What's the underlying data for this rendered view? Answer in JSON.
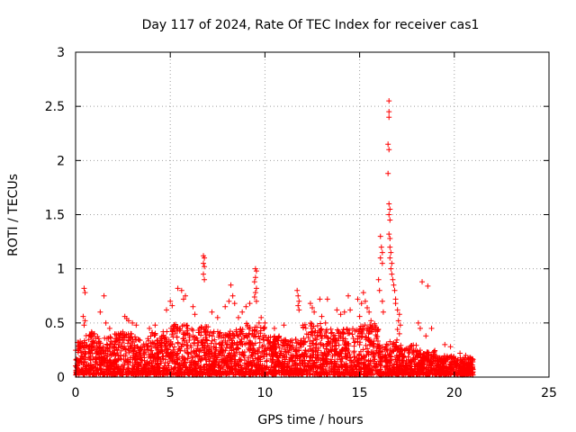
{
  "chart_data": {
    "type": "scatter",
    "title": "Day 117 of 2024, Rate Of TEC Index for receiver cas1",
    "xlabel": "GPS time / hours",
    "ylabel": "ROTI / TECUs",
    "xlim": [
      0,
      25
    ],
    "ylim": [
      0,
      3
    ],
    "xticks": [
      "0",
      "5",
      "10",
      "15",
      "20",
      "25"
    ],
    "yticks": [
      "0",
      "0.5",
      "1",
      "1.5",
      "2",
      "2.5",
      "3"
    ],
    "grid": true,
    "marker": "plus",
    "series_color": "#ff0000",
    "background_envelope": {
      "description": "dense scatter of ROTI values between 0 and the envelope top, sampled 0-21 h",
      "segments": [
        {
          "x": [
            0.0,
            0.5
          ],
          "ymax": 0.35
        },
        {
          "x": [
            0.5,
            1.0
          ],
          "ymax": 0.42
        },
        {
          "x": [
            1.0,
            2.0
          ],
          "ymax": 0.38
        },
        {
          "x": [
            2.0,
            3.0
          ],
          "ymax": 0.42
        },
        {
          "x": [
            3.0,
            4.0
          ],
          "ymax": 0.38
        },
        {
          "x": [
            4.0,
            5.0
          ],
          "ymax": 0.42
        },
        {
          "x": [
            5.0,
            6.0
          ],
          "ymax": 0.5
        },
        {
          "x": [
            6.0,
            7.0
          ],
          "ymax": 0.48
        },
        {
          "x": [
            7.0,
            8.0
          ],
          "ymax": 0.42
        },
        {
          "x": [
            8.0,
            9.0
          ],
          "ymax": 0.45
        },
        {
          "x": [
            9.0,
            10.0
          ],
          "ymax": 0.5
        },
        {
          "x": [
            10.0,
            11.0
          ],
          "ymax": 0.38
        },
        {
          "x": [
            11.0,
            12.0
          ],
          "ymax": 0.35
        },
        {
          "x": [
            12.0,
            13.0
          ],
          "ymax": 0.5
        },
        {
          "x": [
            13.0,
            14.0
          ],
          "ymax": 0.45
        },
        {
          "x": [
            14.0,
            15.0
          ],
          "ymax": 0.45
        },
        {
          "x": [
            15.0,
            16.0
          ],
          "ymax": 0.5
        },
        {
          "x": [
            16.0,
            16.4
          ],
          "ymax": 0.3
        },
        {
          "x": [
            16.4,
            17.0
          ],
          "ymax": 0.35
        },
        {
          "x": [
            17.0,
            18.0
          ],
          "ymax": 0.3
        },
        {
          "x": [
            18.0,
            19.0
          ],
          "ymax": 0.25
        },
        {
          "x": [
            19.0,
            20.0
          ],
          "ymax": 0.2
        },
        {
          "x": [
            20.0,
            21.0
          ],
          "ymax": 0.18
        }
      ]
    },
    "points": [
      {
        "x": 0.1,
        "y": 0.32
      },
      {
        "x": 0.2,
        "y": 0.28
      },
      {
        "x": 0.45,
        "y": 0.82
      },
      {
        "x": 0.5,
        "y": 0.78
      },
      {
        "x": 0.4,
        "y": 0.56
      },
      {
        "x": 0.5,
        "y": 0.52
      },
      {
        "x": 0.45,
        "y": 0.48
      },
      {
        "x": 1.3,
        "y": 0.6
      },
      {
        "x": 1.5,
        "y": 0.75
      },
      {
        "x": 1.6,
        "y": 0.5
      },
      {
        "x": 1.8,
        "y": 0.45
      },
      {
        "x": 2.6,
        "y": 0.56
      },
      {
        "x": 2.7,
        "y": 0.54
      },
      {
        "x": 2.8,
        "y": 0.52
      },
      {
        "x": 3.0,
        "y": 0.5
      },
      {
        "x": 3.2,
        "y": 0.48
      },
      {
        "x": 3.9,
        "y": 0.45
      },
      {
        "x": 4.2,
        "y": 0.48
      },
      {
        "x": 4.8,
        "y": 0.62
      },
      {
        "x": 5.0,
        "y": 0.7
      },
      {
        "x": 5.1,
        "y": 0.66
      },
      {
        "x": 5.4,
        "y": 0.82
      },
      {
        "x": 5.6,
        "y": 0.8
      },
      {
        "x": 5.7,
        "y": 0.72
      },
      {
        "x": 5.8,
        "y": 0.75
      },
      {
        "x": 6.2,
        "y": 0.65
      },
      {
        "x": 6.3,
        "y": 0.58
      },
      {
        "x": 6.75,
        "y": 1.12
      },
      {
        "x": 6.8,
        "y": 1.1
      },
      {
        "x": 6.75,
        "y": 1.05
      },
      {
        "x": 6.8,
        "y": 1.02
      },
      {
        "x": 6.75,
        "y": 0.95
      },
      {
        "x": 6.8,
        "y": 0.9
      },
      {
        "x": 7.2,
        "y": 0.6
      },
      {
        "x": 7.5,
        "y": 0.55
      },
      {
        "x": 7.9,
        "y": 0.65
      },
      {
        "x": 8.1,
        "y": 0.7
      },
      {
        "x": 8.2,
        "y": 0.85
      },
      {
        "x": 8.3,
        "y": 0.75
      },
      {
        "x": 8.4,
        "y": 0.68
      },
      {
        "x": 8.6,
        "y": 0.55
      },
      {
        "x": 8.8,
        "y": 0.6
      },
      {
        "x": 9.0,
        "y": 0.65
      },
      {
        "x": 9.2,
        "y": 0.68
      },
      {
        "x": 9.5,
        "y": 1.0
      },
      {
        "x": 9.55,
        "y": 0.98
      },
      {
        "x": 9.5,
        "y": 0.92
      },
      {
        "x": 9.45,
        "y": 0.88
      },
      {
        "x": 9.55,
        "y": 0.82
      },
      {
        "x": 9.5,
        "y": 0.78
      },
      {
        "x": 9.45,
        "y": 0.74
      },
      {
        "x": 9.55,
        "y": 0.7
      },
      {
        "x": 9.8,
        "y": 0.55
      },
      {
        "x": 10.0,
        "y": 0.5
      },
      {
        "x": 10.5,
        "y": 0.45
      },
      {
        "x": 11.0,
        "y": 0.48
      },
      {
        "x": 11.7,
        "y": 0.8
      },
      {
        "x": 11.75,
        "y": 0.75
      },
      {
        "x": 11.8,
        "y": 0.7
      },
      {
        "x": 11.75,
        "y": 0.66
      },
      {
        "x": 11.8,
        "y": 0.62
      },
      {
        "x": 12.4,
        "y": 0.68
      },
      {
        "x": 12.5,
        "y": 0.64
      },
      {
        "x": 12.6,
        "y": 0.6
      },
      {
        "x": 12.9,
        "y": 0.72
      },
      {
        "x": 13.3,
        "y": 0.72
      },
      {
        "x": 13.0,
        "y": 0.56
      },
      {
        "x": 13.2,
        "y": 0.5
      },
      {
        "x": 13.8,
        "y": 0.62
      },
      {
        "x": 14.0,
        "y": 0.58
      },
      {
        "x": 14.2,
        "y": 0.6
      },
      {
        "x": 14.5,
        "y": 0.62
      },
      {
        "x": 14.4,
        "y": 0.75
      },
      {
        "x": 14.9,
        "y": 0.72
      },
      {
        "x": 15.1,
        "y": 0.68
      },
      {
        "x": 15.2,
        "y": 0.78
      },
      {
        "x": 15.3,
        "y": 0.7
      },
      {
        "x": 15.4,
        "y": 0.64
      },
      {
        "x": 15.5,
        "y": 0.6
      },
      {
        "x": 15.0,
        "y": 0.56
      },
      {
        "x": 15.6,
        "y": 0.52
      },
      {
        "x": 16.1,
        "y": 1.3
      },
      {
        "x": 16.15,
        "y": 1.2
      },
      {
        "x": 16.2,
        "y": 1.15
      },
      {
        "x": 16.1,
        "y": 1.1
      },
      {
        "x": 16.2,
        "y": 1.05
      },
      {
        "x": 16.0,
        "y": 0.9
      },
      {
        "x": 16.05,
        "y": 0.8
      },
      {
        "x": 16.2,
        "y": 0.7
      },
      {
        "x": 16.25,
        "y": 0.6
      },
      {
        "x": 16.55,
        "y": 2.55
      },
      {
        "x": 16.55,
        "y": 2.45
      },
      {
        "x": 16.55,
        "y": 2.4
      },
      {
        "x": 16.5,
        "y": 2.15
      },
      {
        "x": 16.55,
        "y": 2.1
      },
      {
        "x": 16.5,
        "y": 1.88
      },
      {
        "x": 16.55,
        "y": 1.6
      },
      {
        "x": 16.6,
        "y": 1.55
      },
      {
        "x": 16.55,
        "y": 1.5
      },
      {
        "x": 16.6,
        "y": 1.45
      },
      {
        "x": 16.55,
        "y": 1.32
      },
      {
        "x": 16.6,
        "y": 1.28
      },
      {
        "x": 16.6,
        "y": 1.2
      },
      {
        "x": 16.65,
        "y": 1.15
      },
      {
        "x": 16.6,
        "y": 1.1
      },
      {
        "x": 16.7,
        "y": 1.05
      },
      {
        "x": 16.65,
        "y": 1.0
      },
      {
        "x": 16.7,
        "y": 0.95
      },
      {
        "x": 16.75,
        "y": 0.9
      },
      {
        "x": 16.8,
        "y": 0.85
      },
      {
        "x": 16.85,
        "y": 0.8
      },
      {
        "x": 16.9,
        "y": 0.72
      },
      {
        "x": 16.9,
        "y": 0.68
      },
      {
        "x": 17.0,
        "y": 0.62
      },
      {
        "x": 17.1,
        "y": 0.58
      },
      {
        "x": 17.05,
        "y": 0.52
      },
      {
        "x": 17.15,
        "y": 0.48
      },
      {
        "x": 17.0,
        "y": 0.44
      },
      {
        "x": 17.1,
        "y": 0.4
      },
      {
        "x": 18.3,
        "y": 0.88
      },
      {
        "x": 18.6,
        "y": 0.84
      },
      {
        "x": 18.1,
        "y": 0.5
      },
      {
        "x": 18.2,
        "y": 0.45
      },
      {
        "x": 18.8,
        "y": 0.45
      },
      {
        "x": 18.5,
        "y": 0.38
      },
      {
        "x": 19.5,
        "y": 0.3
      },
      {
        "x": 19.8,
        "y": 0.28
      },
      {
        "x": 20.3,
        "y": 0.22
      },
      {
        "x": 20.6,
        "y": 0.2
      }
    ]
  }
}
